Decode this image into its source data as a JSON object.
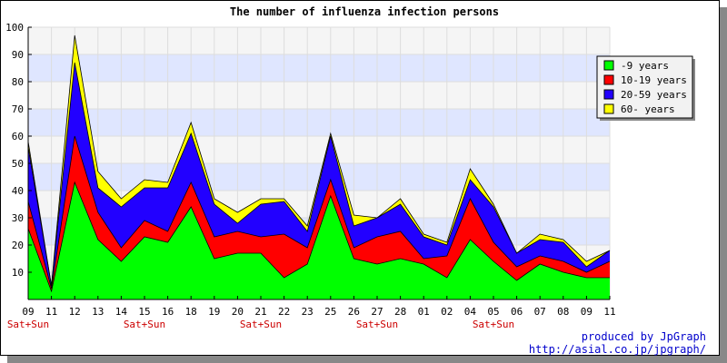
{
  "chart_data": {
    "type": "area",
    "stacked": true,
    "title": "The number of influenza infection persons",
    "xlabel": "",
    "ylabel": "",
    "ylim": [
      0,
      100
    ],
    "ytick_labels": [
      "10",
      "20",
      "30",
      "40",
      "50",
      "60",
      "70",
      "80",
      "90",
      "100"
    ],
    "grid": true,
    "legend_position": "top-right",
    "categories": [
      "09",
      "11",
      "12",
      "13",
      "14",
      "15",
      "16",
      "18",
      "19",
      "20",
      "21",
      "22",
      "23",
      "25",
      "26",
      "27",
      "28",
      "01",
      "02",
      "04",
      "05",
      "06",
      "07",
      "08",
      "09",
      "11"
    ],
    "weekend_marks": [
      {
        "index": 0,
        "label": "Sat+Sun"
      },
      {
        "index": 5,
        "label": "Sat+Sun"
      },
      {
        "index": 10,
        "label": "Sat+Sun"
      },
      {
        "index": 15,
        "label": "Sat+Sun"
      },
      {
        "index": 20,
        "label": "Sat+Sun"
      }
    ],
    "series": [
      {
        "name": "-9 years",
        "color": "#00ff00",
        "values": [
          26,
          3,
          43,
          22,
          14,
          23,
          21,
          34,
          15,
          17,
          17,
          8,
          13,
          38,
          15,
          13,
          15,
          13,
          8,
          22,
          14,
          7,
          13,
          10,
          8,
          8
        ]
      },
      {
        "name": "10-19 years",
        "color": "#ff0000",
        "values": [
          10,
          1,
          17,
          10,
          5,
          6,
          4,
          9,
          8,
          8,
          6,
          16,
          6,
          6,
          4,
          10,
          10,
          2,
          8,
          15,
          7,
          5,
          3,
          4,
          2,
          6
        ]
      },
      {
        "name": "20-59 years",
        "color": "#2200ff",
        "values": [
          20,
          1,
          27,
          9,
          15,
          12,
          16,
          18,
          12,
          3,
          12,
          12,
          6,
          16,
          8,
          7,
          10,
          8,
          4,
          7,
          13,
          5,
          6,
          7,
          2,
          4
        ]
      },
      {
        "name": "60- years",
        "color": "#ffff00",
        "values": [
          2,
          0,
          10,
          6,
          3,
          3,
          2,
          4,
          2,
          4,
          2,
          1,
          2,
          1,
          4,
          0,
          2,
          1,
          1,
          4,
          1,
          0,
          2,
          1,
          2,
          0
        ]
      }
    ],
    "label_color": "#cc0000"
  },
  "credits": {
    "line1": "produced by JpGraph",
    "line2": "http://asial.co.jp/jpgraph/"
  }
}
